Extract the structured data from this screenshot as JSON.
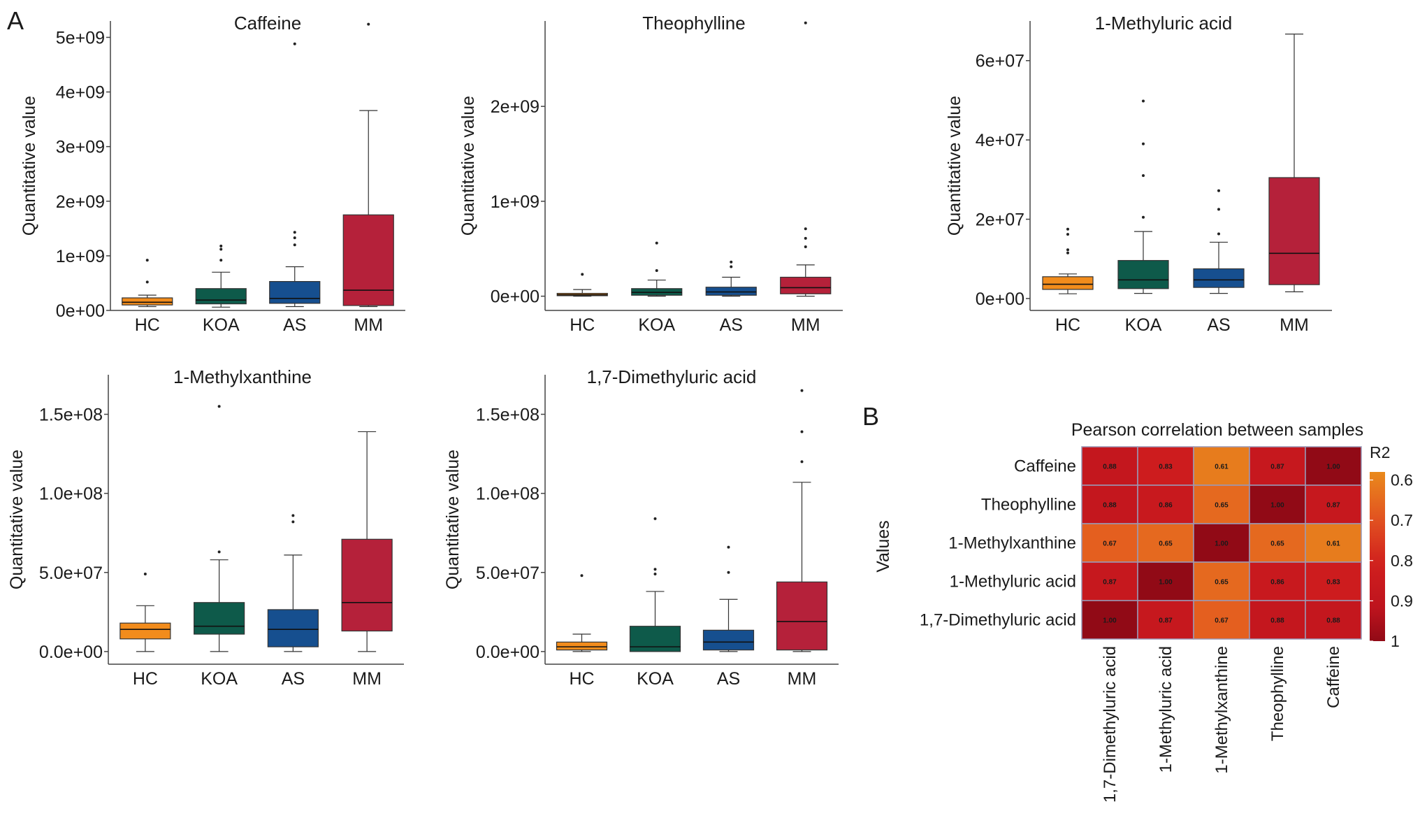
{
  "figure": {
    "label_a": "A",
    "label_b": "B"
  },
  "colors": {
    "HC": "#f28c1c",
    "KOA": "#0e5a4a",
    "AS": "#164f8f",
    "MM": "#b5213a"
  },
  "chart_data": [
    {
      "type": "box",
      "title": "Caffeine",
      "xlabel": "",
      "ylabel": "Quantitative value",
      "ylim": [
        0,
        5300000000
      ],
      "ticks": [
        0,
        1000000000,
        2000000000,
        3000000000,
        4000000000,
        5000000000
      ],
      "tick_labels": [
        "0e+00",
        "1e+09",
        "2e+09",
        "3e+09",
        "4e+09",
        "5e+09"
      ],
      "categories": [
        "HC",
        "KOA",
        "AS",
        "MM"
      ],
      "boxes": [
        {
          "group": "HC",
          "min": 70000000,
          "q1": 100000000,
          "median": 150000000,
          "q3": 230000000,
          "max": 280000000,
          "outliers": [
            920000000,
            520000000
          ]
        },
        {
          "group": "KOA",
          "min": 60000000,
          "q1": 120000000,
          "median": 190000000,
          "q3": 400000000,
          "max": 700000000,
          "outliers": [
            1180000000,
            1120000000,
            920000000
          ]
        },
        {
          "group": "AS",
          "min": 70000000,
          "q1": 130000000,
          "median": 220000000,
          "q3": 530000000,
          "max": 800000000,
          "outliers": [
            4880000000,
            1430000000,
            1330000000,
            1200000000
          ]
        },
        {
          "group": "MM",
          "min": 70000000,
          "q1": 90000000,
          "median": 370000000,
          "q3": 1750000000,
          "max": 3660000000,
          "outliers": [
            5240000000
          ]
        }
      ]
    },
    {
      "type": "box",
      "title": "Theophylline",
      "xlabel": "",
      "ylabel": "Quantitative value",
      "ylim": [
        -150000000,
        2900000000
      ],
      "ticks": [
        0,
        1000000000,
        2000000000
      ],
      "tick_labels": [
        "0e+00",
        "1e+09",
        "2e+09"
      ],
      "categories": [
        "HC",
        "KOA",
        "AS",
        "MM"
      ],
      "boxes": [
        {
          "group": "HC",
          "min": 0,
          "q1": 5000000,
          "median": 15000000,
          "q3": 30000000,
          "max": 70000000,
          "outliers": [
            230000000
          ]
        },
        {
          "group": "KOA",
          "min": 0,
          "q1": 10000000,
          "median": 40000000,
          "q3": 80000000,
          "max": 170000000,
          "outliers": [
            560000000,
            270000000
          ]
        },
        {
          "group": "AS",
          "min": 0,
          "q1": 10000000,
          "median": 45000000,
          "q3": 95000000,
          "max": 200000000,
          "outliers": [
            360000000,
            310000000
          ]
        },
        {
          "group": "MM",
          "min": 0,
          "q1": 25000000,
          "median": 90000000,
          "q3": 200000000,
          "max": 330000000,
          "outliers": [
            2880000000,
            710000000,
            610000000,
            520000000
          ]
        }
      ]
    },
    {
      "type": "box",
      "title": "1-Methyluric acid",
      "xlabel": "",
      "ylabel": "Quantitative value",
      "ylim": [
        -3000000,
        70000000
      ],
      "ticks": [
        0,
        20000000,
        40000000,
        60000000
      ],
      "tick_labels": [
        "0e+00",
        "2e+07",
        "4e+07",
        "6e+07"
      ],
      "categories": [
        "HC",
        "KOA",
        "AS",
        "MM"
      ],
      "boxes": [
        {
          "group": "HC",
          "min": 1200000,
          "q1": 2300000,
          "median": 3600000,
          "q3": 5500000,
          "max": 6200000,
          "outliers": [
            17500000,
            16200000,
            12300000,
            11500000
          ]
        },
        {
          "group": "KOA",
          "min": 1300000,
          "q1": 2500000,
          "median": 4700000,
          "q3": 9600000,
          "max": 16900000,
          "outliers": [
            49800000,
            39000000,
            31000000,
            20500000
          ]
        },
        {
          "group": "AS",
          "min": 1300000,
          "q1": 2800000,
          "median": 4700000,
          "q3": 7500000,
          "max": 14200000,
          "outliers": [
            27200000,
            22500000,
            16300000
          ]
        },
        {
          "group": "MM",
          "min": 1700000,
          "q1": 3500000,
          "median": 11400000,
          "q3": 30500000,
          "max": 66700000,
          "outliers": []
        }
      ]
    },
    {
      "type": "box",
      "title": "1-Methylxanthine",
      "xlabel": "",
      "ylabel": "Quantitative value",
      "ylim": [
        -8000000,
        175000000
      ],
      "ticks": [
        0,
        50000000,
        100000000,
        150000000
      ],
      "tick_labels": [
        "0.0e+00",
        "5.0e+07",
        "1.0e+08",
        "1.5e+08"
      ],
      "categories": [
        "HC",
        "KOA",
        "AS",
        "MM"
      ],
      "boxes": [
        {
          "group": "HC",
          "min": 0,
          "q1": 8000000,
          "median": 14000000,
          "q3": 18000000,
          "max": 29000000,
          "outliers": [
            49000000
          ]
        },
        {
          "group": "KOA",
          "min": 0,
          "q1": 11000000,
          "median": 16000000,
          "q3": 31000000,
          "max": 58000000,
          "outliers": [
            155000000,
            63000000
          ]
        },
        {
          "group": "AS",
          "min": 0,
          "q1": 3000000,
          "median": 14000000,
          "q3": 26500000,
          "max": 61000000,
          "outliers": [
            86000000,
            82000000
          ]
        },
        {
          "group": "MM",
          "min": 0,
          "q1": 13000000,
          "median": 31000000,
          "q3": 71000000,
          "max": 139000000,
          "outliers": []
        }
      ]
    },
    {
      "type": "box",
      "title": "1,7-Dimethyluric acid",
      "xlabel": "",
      "ylabel": "Quantitative value",
      "ylim": [
        -8000000,
        175000000
      ],
      "ticks": [
        0,
        50000000,
        100000000,
        150000000
      ],
      "tick_labels": [
        "0.0e+00",
        "5.0e+07",
        "1.0e+08",
        "1.5e+08"
      ],
      "categories": [
        "HC",
        "KOA",
        "AS",
        "MM"
      ],
      "boxes": [
        {
          "group": "HC",
          "min": 0,
          "q1": 1000000,
          "median": 3000000,
          "q3": 6000000,
          "max": 11000000,
          "outliers": [
            48000000
          ]
        },
        {
          "group": "KOA",
          "min": 0,
          "q1": 0,
          "median": 3000000,
          "q3": 16000000,
          "max": 38000000,
          "outliers": [
            84000000,
            52000000,
            49000000
          ]
        },
        {
          "group": "AS",
          "min": 0,
          "q1": 1000000,
          "median": 6000000,
          "q3": 13500000,
          "max": 33000000,
          "outliers": [
            66000000,
            50000000
          ]
        },
        {
          "group": "MM",
          "min": 0,
          "q1": 1000000,
          "median": 19000000,
          "q3": 44000000,
          "max": 107000000,
          "outliers": [
            165000000,
            139000000,
            120000000
          ]
        }
      ]
    },
    {
      "type": "heatmap",
      "title": "Pearson correlation between samples",
      "ylabel": "Values",
      "rows": [
        "Caffeine",
        "Theophylline",
        "1-Methylxanthine",
        "1-Methyluric acid",
        "1,7-Dimethyluric acid"
      ],
      "columns": [
        "1,7-Dimethyluric acid",
        "1-Methyluric acid",
        "1-Methylxanthine",
        "Theophylline",
        "Caffeine"
      ],
      "values": [
        [
          0.88,
          0.83,
          0.61,
          0.87,
          1.0
        ],
        [
          0.88,
          0.86,
          0.65,
          1.0,
          0.87
        ],
        [
          0.67,
          0.65,
          1.0,
          0.65,
          0.61
        ],
        [
          0.87,
          1.0,
          0.65,
          0.86,
          0.83
        ],
        [
          1.0,
          0.87,
          0.67,
          0.88,
          0.88
        ]
      ],
      "legend": {
        "title": "R2",
        "ticks": [
          0.6,
          0.7,
          0.8,
          0.9,
          1
        ],
        "tick_labels": [
          "0.6",
          "0.7",
          "0.8",
          "0.9",
          "1"
        ],
        "range": [
          0.58,
          1.0
        ]
      }
    }
  ]
}
